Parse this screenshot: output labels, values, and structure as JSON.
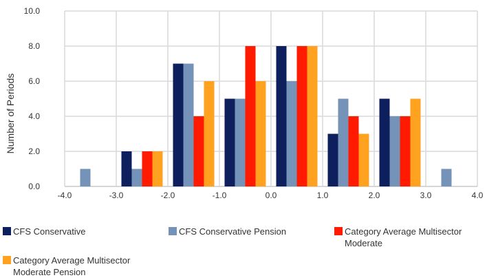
{
  "chart_data": {
    "type": "bar",
    "title": "",
    "xlabel": "",
    "ylabel": "Number of Periods",
    "ylim": [
      0,
      10
    ],
    "yticks": [
      "0.0",
      "2.0",
      "4.0",
      "6.0",
      "8.0",
      "10.0"
    ],
    "xticks": [
      "-4.0",
      "-3.0",
      "-2.0",
      "-1.0",
      "0.0",
      "1.0",
      "2.0",
      "3.0",
      "4.0"
    ],
    "bins": [
      [
        -4,
        -3
      ],
      [
        -3,
        -2
      ],
      [
        -2,
        -1
      ],
      [
        -1,
        0
      ],
      [
        0,
        1
      ],
      [
        1,
        2
      ],
      [
        2,
        3
      ],
      [
        3,
        4
      ]
    ],
    "grid": true,
    "legend_position": "bottom",
    "series": [
      {
        "name": "CFS Conservative",
        "color": "#0d1f5c",
        "values": [
          0,
          2,
          7,
          5,
          8,
          3,
          5,
          0
        ]
      },
      {
        "name": "CFS Conservative Pension",
        "color": "#7592b8",
        "values": [
          1,
          1,
          7,
          5,
          6,
          5,
          4,
          1
        ]
      },
      {
        "name": "Category Average Multisector Moderate",
        "color": "#ff1a00",
        "values": [
          0,
          2,
          4,
          8,
          8,
          4,
          4,
          0
        ]
      },
      {
        "name": "Category Average Multisector Moderate Pension",
        "color": "#ffa21f",
        "values": [
          0,
          2,
          6,
          6,
          8,
          3,
          5,
          0
        ]
      }
    ]
  },
  "legend": {
    "items": [
      {
        "lines": [
          "CFS Conservative"
        ]
      },
      {
        "lines": [
          "CFS Conservative Pension"
        ]
      },
      {
        "lines": [
          "Category Average Multisector",
          "Moderate"
        ]
      },
      {
        "lines": [
          "Category Average Multisector",
          "Moderate Pension"
        ]
      }
    ]
  }
}
